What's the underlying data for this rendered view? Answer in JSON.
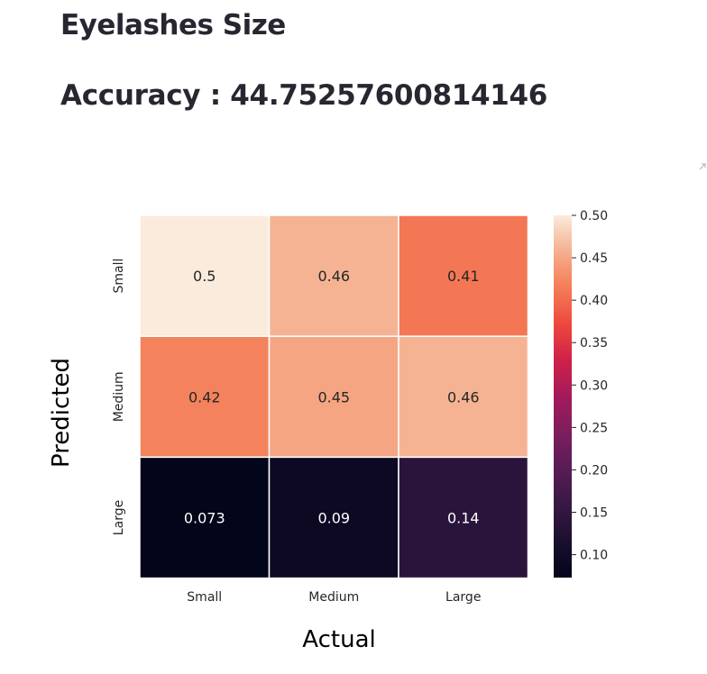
{
  "page": {
    "title": "Eyelashes Size",
    "accuracy": "Accuracy : 44.75257600814146"
  },
  "toolbar": {
    "expand_icon": "fullscreen-expand-icon"
  },
  "chart_data": {
    "type": "heatmap",
    "x_categories": [
      "Small",
      "Medium",
      "Large"
    ],
    "y_categories": [
      "Small",
      "Medium",
      "Large"
    ],
    "values": [
      [
        0.5,
        0.46,
        0.41
      ],
      [
        0.42,
        0.45,
        0.46
      ],
      [
        0.073,
        0.09,
        0.14
      ]
    ],
    "cell_labels": [
      [
        "0.5",
        "0.46",
        "0.41"
      ],
      [
        "0.42",
        "0.45",
        "0.46"
      ],
      [
        "0.073",
        "0.09",
        "0.14"
      ]
    ],
    "xlabel": "Actual",
    "ylabel": "Predicted",
    "colorbar": {
      "ticks": [
        "0.10",
        "0.15",
        "0.20",
        "0.25",
        "0.30",
        "0.35",
        "0.40",
        "0.45",
        "0.50"
      ],
      "range": [
        0.073,
        0.5
      ],
      "colormap": "rocket"
    }
  }
}
